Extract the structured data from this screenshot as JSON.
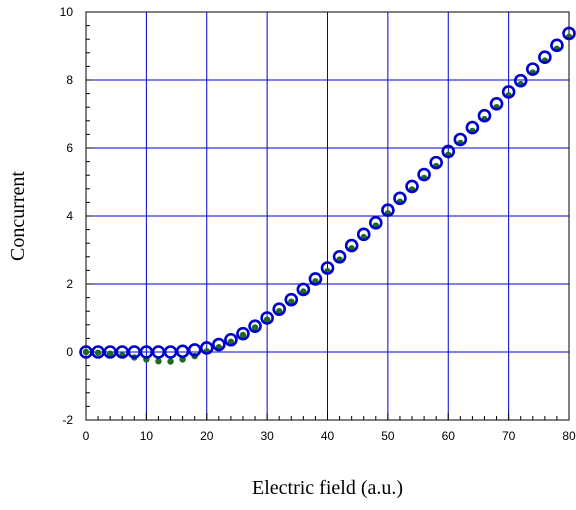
{
  "chart_data": {
    "type": "scatter",
    "title": "",
    "xlabel": "Electric field (a.u.)",
    "ylabel": "Concurrent",
    "xlim": [
      0,
      80
    ],
    "ylim": [
      -2,
      10
    ],
    "xticks": [
      0,
      10,
      20,
      30,
      40,
      50,
      60,
      70,
      80
    ],
    "yticks": [
      -2,
      0,
      2,
      4,
      6,
      8,
      10
    ],
    "xticklabels": [
      "0",
      "10",
      "20",
      "30",
      "40",
      "50",
      "60",
      "70",
      "80"
    ],
    "yticklabels": [
      "-2",
      "0",
      "2",
      "4",
      "6",
      "8",
      "10"
    ],
    "grid": true,
    "legend": "none",
    "colors": {
      "grid": "#0000cc",
      "axes": "#000000",
      "open_series": "#0000cc",
      "filled_series": "#1e6b1e"
    },
    "series": [
      {
        "marker": "open-circle",
        "x": [
          0,
          2,
          4,
          6,
          8,
          10,
          12,
          14,
          16,
          18,
          20,
          22,
          24,
          26,
          28,
          30,
          32,
          34,
          36,
          38,
          40,
          42,
          44,
          46,
          48,
          50,
          52,
          54,
          56,
          58,
          60,
          62,
          64,
          66,
          68,
          70,
          72,
          74,
          76,
          78,
          80
        ],
        "y": [
          0,
          0,
          0,
          0,
          0,
          0,
          0,
          0,
          0.02,
          0.06,
          0.12,
          0.22,
          0.36,
          0.54,
          0.76,
          1.0,
          1.26,
          1.54,
          1.84,
          2.15,
          2.47,
          2.8,
          3.13,
          3.46,
          3.8,
          4.17,
          4.52,
          4.87,
          5.22,
          5.57,
          5.9,
          6.25,
          6.6,
          6.95,
          7.3,
          7.65,
          7.98,
          8.32,
          8.67,
          9.02,
          9.37
        ]
      },
      {
        "marker": "filled-dot",
        "x": [
          0,
          2,
          4,
          6,
          8,
          10,
          12,
          14,
          16,
          18,
          20,
          22,
          24,
          26,
          28,
          30,
          32,
          34,
          36,
          38,
          40,
          42,
          44,
          46,
          48,
          50,
          52,
          54,
          56,
          58,
          60,
          62,
          64,
          66,
          68,
          70,
          72,
          74,
          76,
          78,
          80
        ],
        "y": [
          0,
          -0.02,
          -0.05,
          -0.1,
          -0.16,
          -0.22,
          -0.27,
          -0.28,
          -0.22,
          -0.12,
          0.02,
          0.14,
          0.3,
          0.5,
          0.72,
          0.95,
          1.2,
          1.48,
          1.78,
          2.08,
          2.38,
          2.72,
          3.05,
          3.38,
          3.72,
          4.08,
          4.42,
          4.78,
          5.12,
          5.47,
          5.8,
          6.15,
          6.5,
          6.85,
          7.2,
          7.55,
          7.88,
          8.22,
          8.57,
          8.92,
          9.27
        ]
      }
    ]
  }
}
